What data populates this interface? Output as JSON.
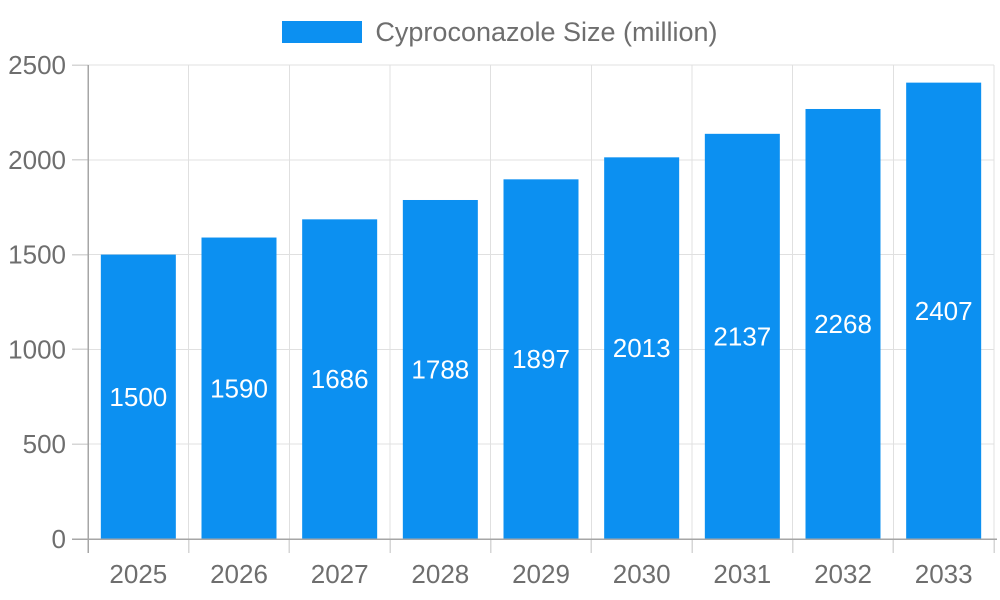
{
  "legend": {
    "label": "Cyproconazole Size (million)"
  },
  "colors": {
    "bar": "#0c90f1",
    "grid": "#e0e0e0",
    "tick": "#d6d6d6",
    "axis": "#a6a6a6",
    "text": "#6e6e6e",
    "bar_label": "#ffffff",
    "background": "#ffffff"
  },
  "chart_data": {
    "type": "bar",
    "title": "Cyproconazole Size (million)",
    "categories": [
      "2025",
      "2026",
      "2027",
      "2028",
      "2029",
      "2030",
      "2031",
      "2032",
      "2033"
    ],
    "series": [
      {
        "name": "Cyproconazole Size (million)",
        "values": [
          1500,
          1590,
          1686,
          1788,
          1897,
          2013,
          2137,
          2268,
          2407
        ]
      }
    ],
    "xlabel": "",
    "ylabel": "",
    "ylim": [
      0,
      2500
    ],
    "yticks": [
      0,
      500,
      1000,
      1500,
      2000,
      2500
    ],
    "grid": true,
    "legend_position": "top-center",
    "bar_value_labels": "inside-center"
  }
}
